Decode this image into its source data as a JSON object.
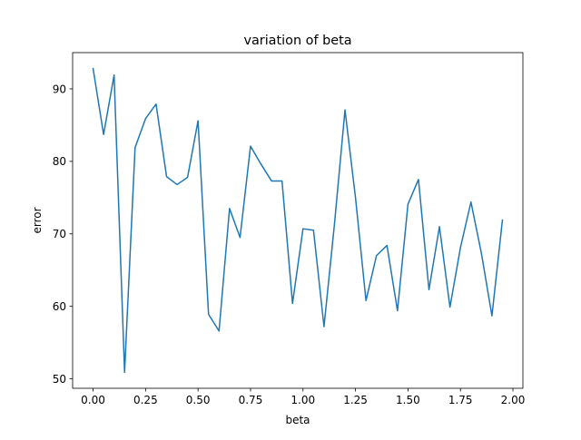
{
  "chart_data": {
    "type": "line",
    "title": "variation of beta",
    "xlabel": "beta",
    "ylabel": "error",
    "xlim": [
      -0.0975,
      2.0475
    ],
    "ylim": [
      48.7,
      95.0
    ],
    "xticks": [
      0.0,
      0.25,
      0.5,
      0.75,
      1.0,
      1.25,
      1.5,
      1.75,
      2.0
    ],
    "xtick_labels": [
      "0.00",
      "0.25",
      "0.50",
      "0.75",
      "1.00",
      "1.25",
      "1.50",
      "1.75",
      "2.00"
    ],
    "yticks": [
      50,
      60,
      70,
      80,
      90
    ],
    "ytick_labels": [
      "50",
      "60",
      "70",
      "80",
      "90"
    ],
    "grid": false,
    "series": [
      {
        "color": "#1f77b4",
        "x": [
          0.0,
          0.05,
          0.1,
          0.15,
          0.2,
          0.25,
          0.3,
          0.35,
          0.4,
          0.45,
          0.5,
          0.55,
          0.6,
          0.65,
          0.7,
          0.75,
          0.8,
          0.85,
          0.9,
          0.95,
          1.0,
          1.05,
          1.1,
          1.15,
          1.2,
          1.25,
          1.3,
          1.35,
          1.4,
          1.45,
          1.5,
          1.55,
          1.6,
          1.65,
          1.7,
          1.75,
          1.8,
          1.85,
          1.9,
          1.95
        ],
        "values": [
          92.8,
          83.7,
          91.9,
          50.9,
          81.9,
          85.9,
          87.9,
          77.9,
          76.8,
          77.8,
          85.6,
          58.9,
          56.6,
          73.5,
          69.5,
          82.1,
          79.6,
          77.3,
          77.3,
          60.4,
          70.7,
          70.5,
          57.2,
          71.4,
          87.1,
          75.0,
          60.8,
          67.0,
          68.4,
          59.4,
          74.1,
          77.5,
          62.3,
          71.0,
          59.9,
          68.1,
          74.4,
          67.3,
          58.7,
          71.9
        ]
      }
    ]
  }
}
